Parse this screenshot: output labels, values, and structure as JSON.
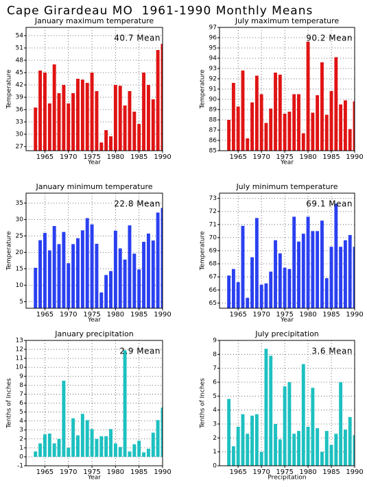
{
  "title": "Cape Girardeau MO  1961-1990 Monthly Means",
  "chart_data": [
    {
      "type": "bar",
      "title": "January maximum temperature",
      "xlabel": "Year",
      "ylabel": "Temperature",
      "annotation": "40.7 Mean",
      "color": "#e01414",
      "x": [
        1963,
        1964,
        1965,
        1966,
        1967,
        1968,
        1969,
        1970,
        1971,
        1972,
        1973,
        1974,
        1975,
        1976,
        1977,
        1978,
        1979,
        1980,
        1981,
        1982,
        1983,
        1984,
        1985,
        1986,
        1987,
        1988,
        1989,
        1990
      ],
      "values": [
        36.5,
        45.5,
        45,
        37.5,
        47,
        40,
        42,
        37.5,
        40,
        43.5,
        43.3,
        42.5,
        45,
        40.5,
        28,
        31,
        29.5,
        42,
        41.8,
        37,
        40.5,
        35.5,
        32.5,
        45,
        42,
        38.5,
        50.5,
        52
      ],
      "xlim": [
        1961,
        1990
      ],
      "xticks": [
        1965,
        1970,
        1975,
        1980,
        1985,
        1990
      ],
      "ylim": [
        26,
        56
      ],
      "yticks": [
        27,
        30,
        33,
        36,
        39,
        42,
        45,
        48,
        51,
        54
      ],
      "grid": true
    },
    {
      "type": "bar",
      "title": "July maximum temperature",
      "xlabel": "Year",
      "ylabel": "Temperature",
      "annotation": "90.2 Mean",
      "color": "#e01414",
      "x": [
        1963,
        1964,
        1965,
        1966,
        1967,
        1968,
        1969,
        1970,
        1971,
        1972,
        1973,
        1974,
        1975,
        1976,
        1977,
        1978,
        1979,
        1980,
        1981,
        1982,
        1983,
        1984,
        1985,
        1986,
        1987,
        1988,
        1989,
        1990
      ],
      "values": [
        88,
        91.6,
        89.3,
        92.8,
        86.2,
        89.7,
        92.3,
        90.5,
        87.7,
        89.1,
        92.6,
        92.4,
        88.6,
        88.8,
        90.5,
        90.5,
        86.7,
        95.6,
        88.7,
        90.4,
        93.6,
        88.5,
        90.8,
        94.1,
        89.5,
        89.9,
        87.1,
        89.8
      ],
      "xlim": [
        1961,
        1990
      ],
      "xticks": [
        1965,
        1970,
        1975,
        1980,
        1985,
        1990
      ],
      "ylim": [
        85,
        97
      ],
      "yticks": [
        85,
        86,
        87,
        88,
        89,
        90,
        91,
        92,
        93,
        94,
        95,
        96,
        97
      ],
      "grid": true
    },
    {
      "type": "bar",
      "title": "January minimum temperature",
      "xlabel": "Year",
      "ylabel": "Temperature",
      "annotation": "22.8 Mean",
      "color": "#2a40f0",
      "x": [
        1963,
        1964,
        1965,
        1966,
        1967,
        1968,
        1969,
        1970,
        1971,
        1972,
        1973,
        1974,
        1975,
        1976,
        1977,
        1978,
        1979,
        1980,
        1981,
        1982,
        1983,
        1984,
        1985,
        1986,
        1987,
        1988,
        1989,
        1990
      ],
      "values": [
        15.3,
        23.7,
        25.9,
        20.6,
        28,
        22.5,
        26.2,
        16.7,
        22.5,
        24.3,
        26.7,
        30.4,
        28.5,
        22.6,
        7.8,
        13.1,
        14.3,
        26.6,
        21.2,
        17.8,
        28.2,
        19.6,
        14.8,
        23.2,
        25.7,
        23.6,
        32.1,
        33.5
      ],
      "xlim": [
        1961,
        1990
      ],
      "xticks": [
        1965,
        1970,
        1975,
        1980,
        1985,
        1990
      ],
      "ylim": [
        3,
        38
      ],
      "yticks": [
        5,
        10,
        15,
        20,
        25,
        30,
        35
      ],
      "grid": true
    },
    {
      "type": "bar",
      "title": "July minimum temperature",
      "xlabel": "Year",
      "ylabel": "Temperature",
      "annotation": "69.1 Mean",
      "color": "#2a40f0",
      "x": [
        1963,
        1964,
        1965,
        1966,
        1967,
        1968,
        1969,
        1970,
        1971,
        1972,
        1973,
        1974,
        1975,
        1976,
        1977,
        1978,
        1979,
        1980,
        1981,
        1982,
        1983,
        1984,
        1985,
        1986,
        1987,
        1988,
        1989,
        1990
      ],
      "values": [
        67.1,
        67.6,
        66.6,
        70.9,
        65.4,
        68.5,
        71.5,
        66.4,
        66.5,
        67.4,
        69.8,
        68.8,
        67.7,
        67.6,
        71.6,
        69.7,
        70.3,
        71.6,
        70.5,
        70.5,
        71.3,
        66.9,
        69.3,
        72.6,
        69.3,
        69.8,
        70.2,
        69.3
      ],
      "xlim": [
        1961,
        1990
      ],
      "xticks": [
        1965,
        1970,
        1975,
        1980,
        1985,
        1990
      ],
      "ylim": [
        64.6,
        73.4
      ],
      "yticks": [
        65,
        66,
        67,
        68,
        69,
        70,
        71,
        72,
        73
      ],
      "grid": true
    },
    {
      "type": "bar",
      "title": "January precipitation",
      "xlabel": "Year",
      "ylabel": "Tenths of Inches",
      "annotation": "2.9 Mean",
      "color": "#1ec0c0",
      "x": [
        1963,
        1964,
        1965,
        1966,
        1967,
        1968,
        1969,
        1970,
        1971,
        1972,
        1973,
        1974,
        1975,
        1976,
        1977,
        1978,
        1979,
        1980,
        1981,
        1982,
        1983,
        1984,
        1985,
        1986,
        1987,
        1988,
        1989,
        1990
      ],
      "values": [
        0.6,
        1.5,
        2.5,
        2.6,
        1.5,
        2,
        8.5,
        1,
        4.3,
        2.4,
        4.8,
        4.1,
        3.1,
        2,
        2.3,
        2.3,
        3.1,
        1.5,
        1.1,
        11.9,
        0.6,
        1.4,
        1.8,
        0.5,
        0.9,
        2.7,
        4.1,
        5.5
      ],
      "xlim": [
        1961,
        1990
      ],
      "xticks": [
        1965,
        1970,
        1975,
        1980,
        1985,
        1990
      ],
      "ylim": [
        -1,
        13
      ],
      "yticks": [
        -1,
        0,
        1,
        2,
        3,
        4,
        5,
        6,
        7,
        8,
        9,
        10,
        11,
        12,
        13
      ],
      "grid": true
    },
    {
      "type": "bar",
      "title": "July precipitation",
      "xlabel": "Precipitation",
      "ylabel": "Tenths of Inches",
      "annotation": "3.6 Mean",
      "color": "#1ec0c0",
      "x": [
        1963,
        1964,
        1965,
        1966,
        1967,
        1968,
        1969,
        1970,
        1971,
        1972,
        1973,
        1974,
        1975,
        1976,
        1977,
        1978,
        1979,
        1980,
        1981,
        1982,
        1983,
        1984,
        1985,
        1986,
        1987,
        1988,
        1989,
        1990
      ],
      "values": [
        4.8,
        1.4,
        2.8,
        3.7,
        2.3,
        3.6,
        3.7,
        1,
        8.4,
        7.9,
        3,
        1.9,
        5.7,
        6,
        2.3,
        2.5,
        7.3,
        2.8,
        5.6,
        2.7,
        1,
        2.5,
        1.5,
        2.3,
        6,
        2.6,
        3.5,
        2.2
      ],
      "xlim": [
        1961,
        1990
      ],
      "xticks": [
        1965,
        1970,
        1975,
        1980,
        1985,
        1990
      ],
      "ylim": [
        0,
        9
      ],
      "yticks": [
        0,
        1,
        2,
        3,
        4,
        5,
        6,
        7,
        8,
        9
      ],
      "grid": true
    }
  ]
}
